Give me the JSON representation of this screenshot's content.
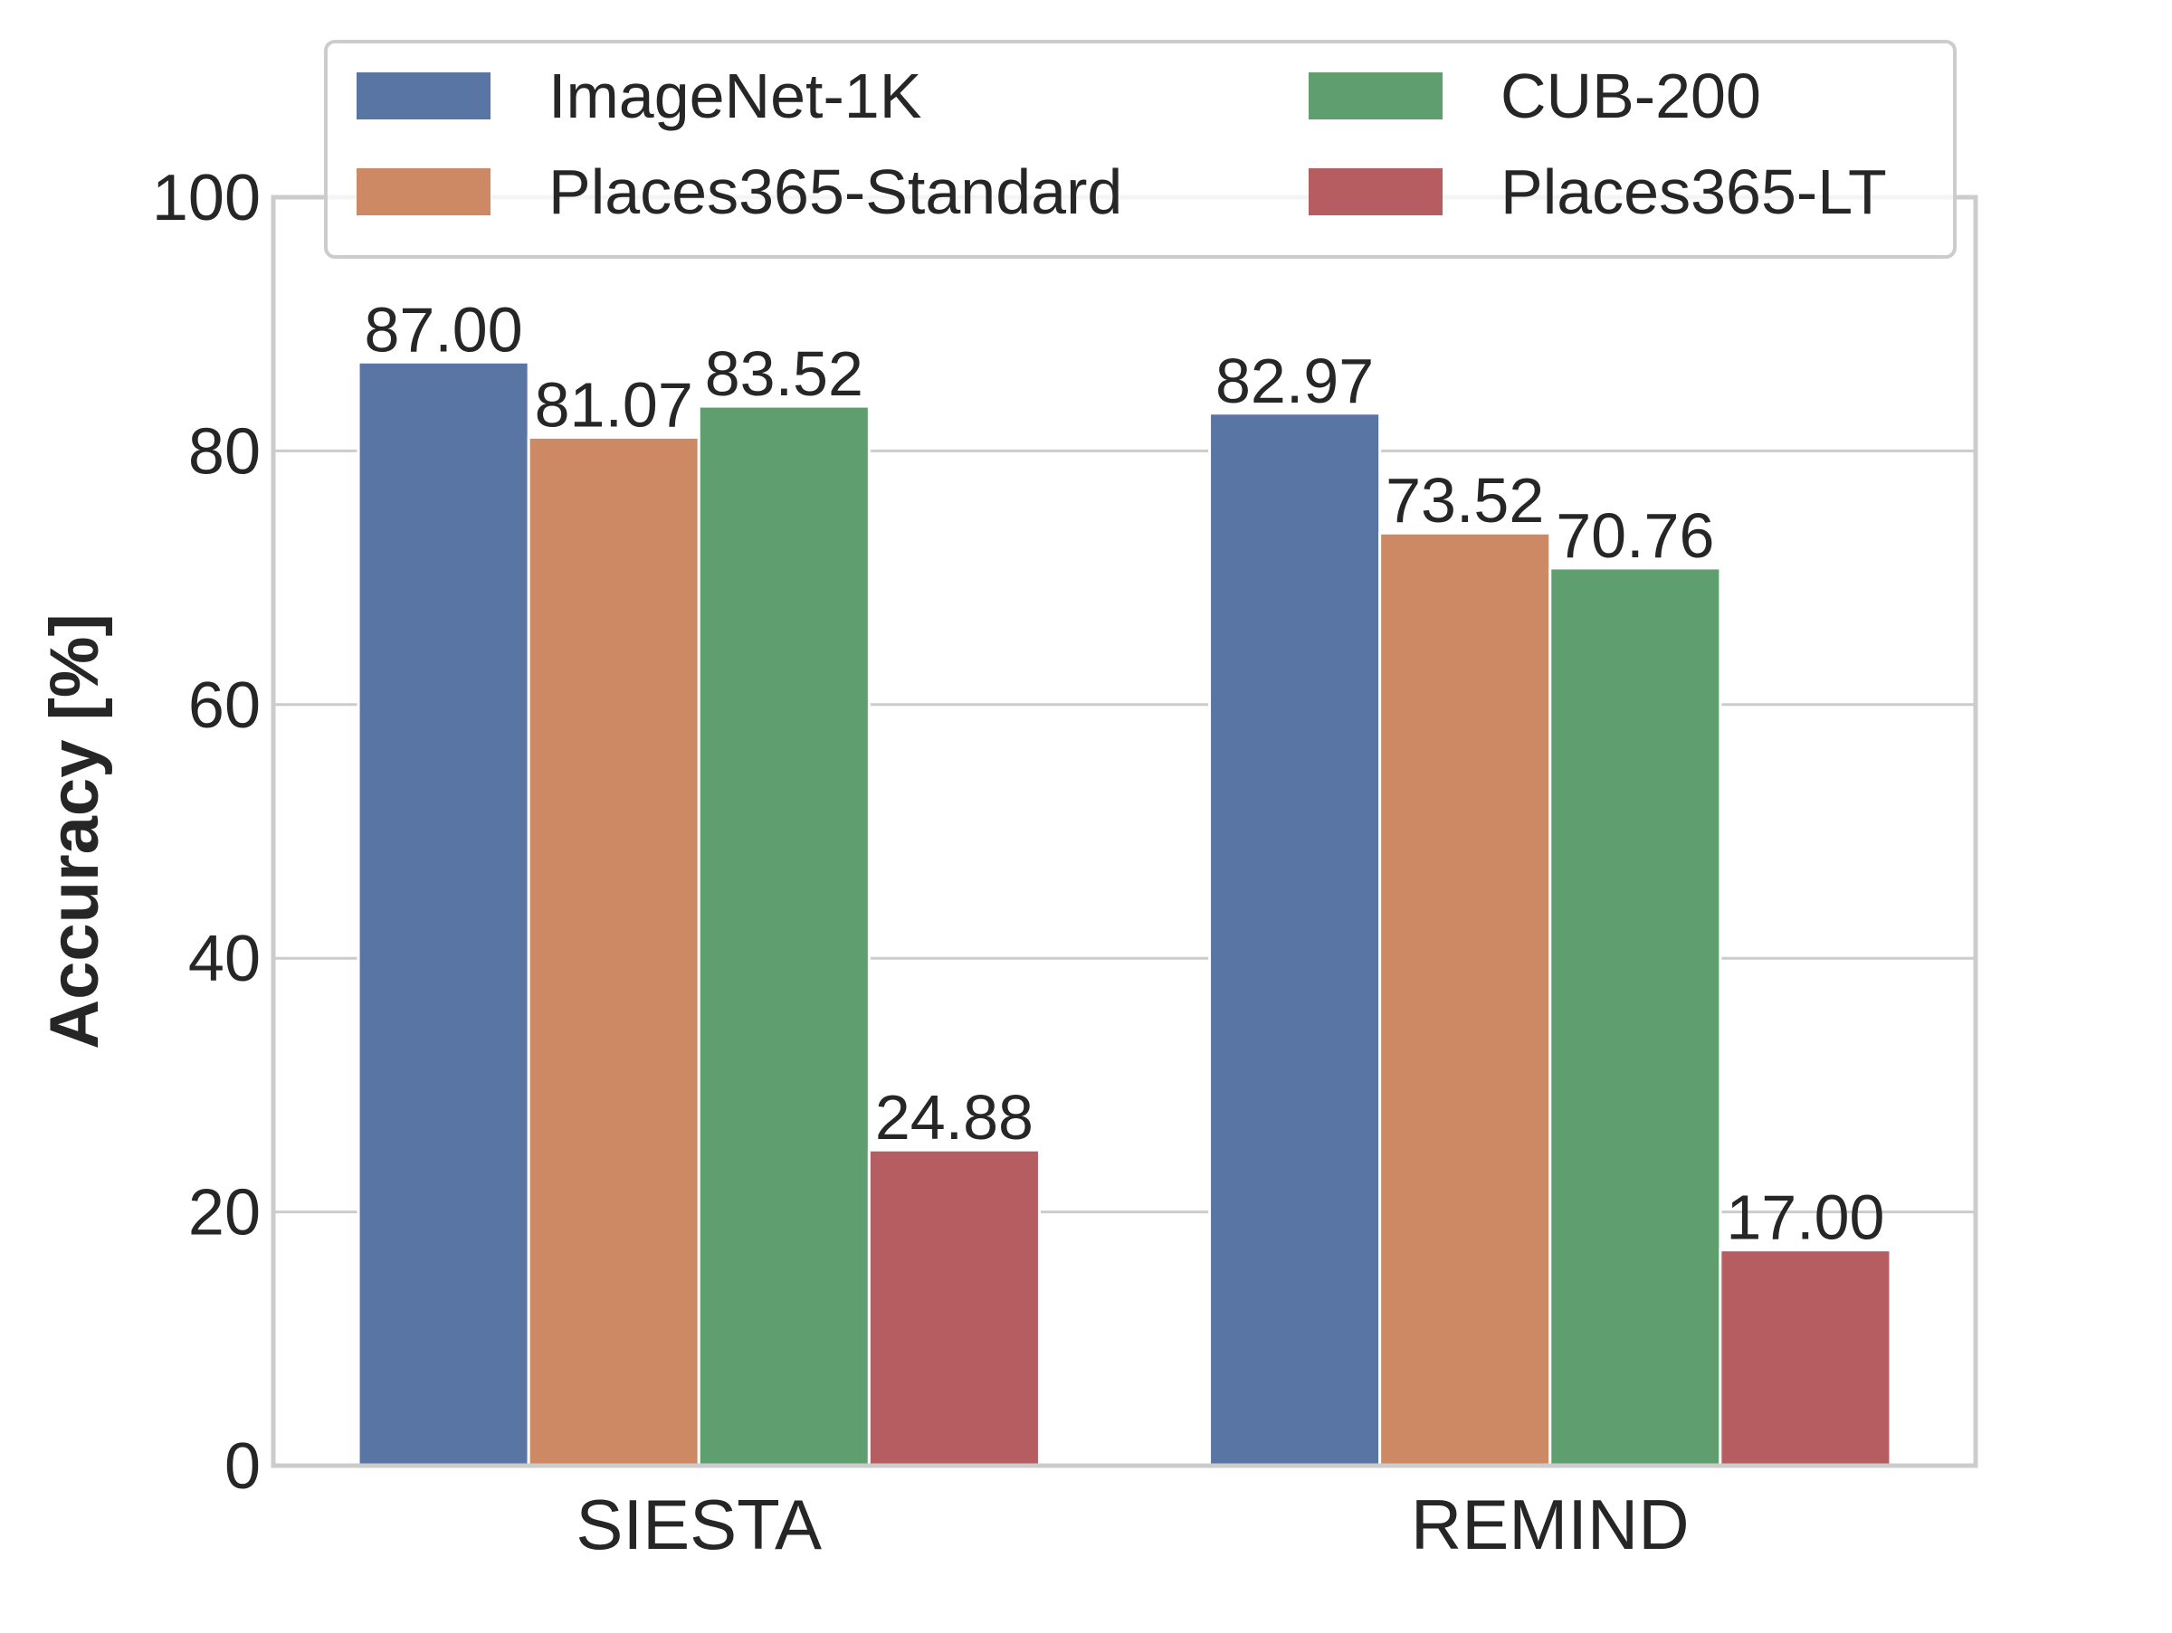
{
  "chart_data": {
    "type": "bar",
    "title": "",
    "xlabel": "",
    "ylabel": "Accuracy [%]",
    "ylim": [
      0,
      100
    ],
    "yticks": [
      0,
      20,
      40,
      60,
      80,
      100
    ],
    "grid": "horizontal",
    "legend_placement": "top",
    "categories": [
      "SIESTA",
      "REMIND"
    ],
    "series": [
      {
        "name": "ImageNet-1K",
        "color": "#5975A4",
        "values": [
          87.0,
          82.97
        ],
        "labels": [
          "87.00",
          "82.97"
        ]
      },
      {
        "name": "Places365-Standard",
        "color": "#CC8963",
        "values": [
          81.07,
          73.52
        ],
        "labels": [
          "81.07",
          "73.52"
        ]
      },
      {
        "name": "CUB-200",
        "color": "#5F9E6E",
        "values": [
          83.52,
          70.76
        ],
        "labels": [
          "83.52",
          "70.76"
        ]
      },
      {
        "name": "Places365-LT",
        "color": "#B55D60",
        "values": [
          24.88,
          17.0
        ],
        "labels": [
          "24.88",
          "17.00"
        ]
      }
    ]
  }
}
